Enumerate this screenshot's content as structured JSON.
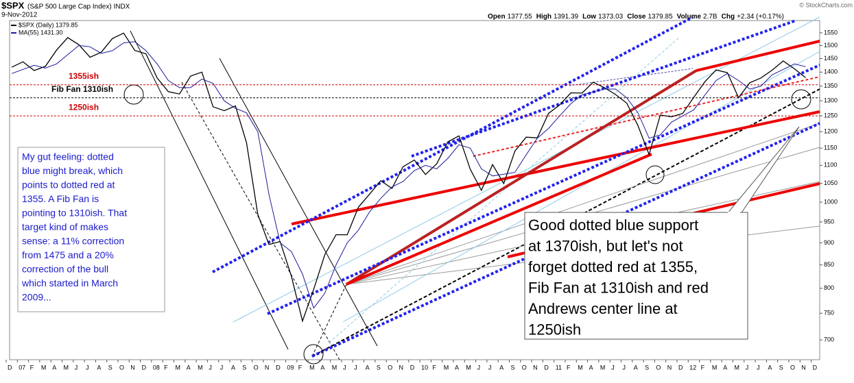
{
  "chart_data": {
    "type": "line",
    "title": "$SPX",
    "subtitle": "(S&P 500 Large Cap Index) INDX",
    "date": "9-Nov-2012",
    "quote": [
      {
        "label": "Open",
        "value": "1377.55"
      },
      {
        "label": "High",
        "value": "1391.39"
      },
      {
        "label": "Low",
        "value": "1373.03"
      },
      {
        "label": "Close",
        "value": "1379.85"
      },
      {
        "label": "Volume",
        "value": "2.7B"
      },
      {
        "label": "Chg",
        "value": "+2.34 (+0.17%)"
      }
    ],
    "credit": "© StockCharts.com",
    "log_scale": true,
    "grid": false,
    "categories": [
      "D",
      "07",
      "F",
      "M",
      "A",
      "M",
      "J",
      "J",
      "A",
      "S",
      "O",
      "N",
      "D",
      "08",
      "F",
      "M",
      "A",
      "M",
      "J",
      "J",
      "A",
      "S",
      "O",
      "N",
      "D",
      "09",
      "F",
      "M",
      "A",
      "M",
      "J",
      "J",
      "A",
      "S",
      "O",
      "N",
      "D",
      "10",
      "F",
      "M",
      "A",
      "M",
      "J",
      "J",
      "A",
      "S",
      "O",
      "N",
      "D",
      "11",
      "F",
      "M",
      "A",
      "M",
      "J",
      "J",
      "A",
      "S",
      "O",
      "N",
      "D",
      "12",
      "F",
      "M",
      "A",
      "M",
      "J",
      "J",
      "A",
      "S",
      "O",
      "N",
      "D"
    ],
    "series": [
      {
        "name": "$SPX (Daily) 1379.85",
        "color": "#000000",
        "values": [
          1418,
          1438,
          1406,
          1421,
          1482,
          1531,
          1503,
          1455,
          1474,
          1527,
          1549,
          1481,
          1468,
          1379,
          1331,
          1323,
          1386,
          1400,
          1280,
          1267,
          1283,
          1166,
          969,
          896,
          903,
          826,
          735,
          798,
          873,
          919,
          919,
          987,
          1021,
          1057,
          1036,
          1096,
          1115,
          1074,
          1104,
          1169,
          1187,
          1089,
          1031,
          1102,
          1049,
          1141,
          1183,
          1181,
          1258,
          1286,
          1327,
          1326,
          1364,
          1345,
          1321,
          1292,
          1219,
          1131,
          1253,
          1247,
          1258,
          1312,
          1366,
          1408,
          1398,
          1310,
          1362,
          1379,
          1407,
          1441,
          1412,
          1380,
          null
        ]
      },
      {
        "name": "MA(55) 1431.30",
        "color": "#1a1a99",
        "values": [
          1395,
          1410,
          1425,
          1415,
          1430,
          1465,
          1500,
          1495,
          1470,
          1480,
          1510,
          1515,
          1480,
          1430,
          1370,
          1345,
          1345,
          1375,
          1360,
          1300,
          1275,
          1260,
          1200,
          1020,
          900,
          880,
          830,
          760,
          790,
          850,
          900,
          930,
          975,
          1010,
          1040,
          1055,
          1085,
          1100,
          1090,
          1120,
          1160,
          1150,
          1090,
          1070,
          1075,
          1080,
          1130,
          1180,
          1210,
          1250,
          1290,
          1320,
          1330,
          1340,
          1340,
          1310,
          1260,
          1180,
          1190,
          1230,
          1250,
          1270,
          1320,
          1370,
          1395,
          1370,
          1340,
          1350,
          1390,
          1410,
          1430,
          1420,
          null
        ]
      }
    ],
    "ylim": [
      665,
      1600
    ],
    "yticks": [
      700,
      750,
      800,
      850,
      900,
      950,
      1000,
      1050,
      1100,
      1150,
      1200,
      1250,
      1300,
      1350,
      1400,
      1450,
      1500,
      1550
    ],
    "levels": [
      {
        "label": "1355ish",
        "value": 1355,
        "color": "#cc0000"
      },
      {
        "label": "Fib Fan 1310ish",
        "value": 1310,
        "color": "#000000"
      },
      {
        "label": "1250ish",
        "value": 1250,
        "color": "#cc0000"
      }
    ],
    "note": [
      "My gut feeling: dotted",
      "blue might break, which",
      "points to dotted red at",
      "1355. A Fib Fan is",
      "pointing to 1310ish. That",
      "target kind of makes",
      "sense: a 11% correction",
      "from 1475 and a 20%",
      "correction of the bull",
      "which started in March",
      "2009..."
    ],
    "callout": [
      "Good dotted blue support",
      "at 1370ish, but let's not",
      "forget dotted red at 1355,",
      "Fib Fan at 1310ish and red",
      "Andrews center line at",
      "1250ish"
    ]
  }
}
